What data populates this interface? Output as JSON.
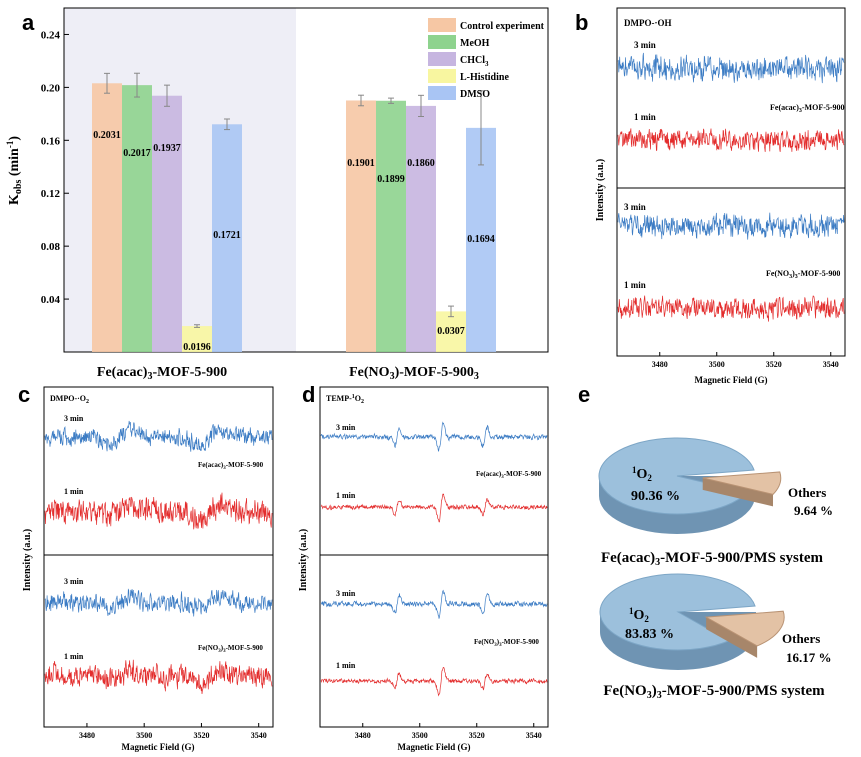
{
  "panels": {
    "a": "a",
    "b": "b",
    "c": "c",
    "d": "d",
    "e": "e"
  },
  "colors": {
    "control": "#f6c7a4",
    "meoh": "#8ed38e",
    "chcl3": "#c6b5e0",
    "histidine": "#f8f6a0",
    "dmso": "#a9c5f4",
    "blue_trace": "#3c7cc4",
    "red_trace": "#e32c2c",
    "pie_blue": "#9cc0dc",
    "pie_tan": "#e3c2a5"
  },
  "chart_data": [
    {
      "type": "bar",
      "panel": "a",
      "ylabel_main": "K",
      "ylabel_sub": "obs",
      "ylabel_unit": " (min",
      "ylabel_exp": "-1",
      "ylabel_close": ")",
      "ylim": [
        0,
        0.26
      ],
      "yticks": [
        "0.04",
        "0.08",
        "0.12",
        "0.16",
        "0.20",
        "0.24"
      ],
      "ytick_values": [
        0.04,
        0.08,
        0.12,
        0.16,
        0.2,
        0.24
      ],
      "categories": [
        "Fe(acac)3-MOF-5-900",
        "Fe(NO3)3-MOF-5-900"
      ],
      "category_main": [
        "Fe(acac)",
        "Fe(NO"
      ],
      "category_rest": [
        "-MOF-5-900",
        ")-MOF-5-900"
      ],
      "category_subs": [
        "3",
        "3"
      ],
      "category_subs2": [
        "",
        "3"
      ],
      "legend": [
        {
          "label": "Control experiment"
        },
        {
          "label": "MeOH"
        },
        {
          "label": "CHCl",
          "sub": "3"
        },
        {
          "label": "L-Histidine"
        },
        {
          "label": "DMSO"
        }
      ],
      "series": [
        {
          "name": "Control experiment",
          "values": [
            0.2031,
            0.1901
          ],
          "errors": [
            0.0075,
            0.004
          ]
        },
        {
          "name": "MeOH",
          "values": [
            0.2017,
            0.1899
          ],
          "errors": [
            0.009,
            0.002
          ]
        },
        {
          "name": "CHCl3",
          "values": [
            0.1937,
            0.186
          ],
          "errors": [
            0.008,
            0.008
          ]
        },
        {
          "name": "L-Histidine",
          "values": [
            0.0196,
            0.0307
          ],
          "errors": [
            0.001,
            0.004
          ]
        },
        {
          "name": "DMSO",
          "values": [
            0.1721,
            0.1694
          ],
          "errors": [
            0.004,
            0.028
          ]
        }
      ],
      "value_labels": [
        [
          "0.2031",
          "0.2017",
          "0.1937",
          "0.0196",
          "0.1721"
        ],
        [
          "0.1901",
          "0.1899",
          "0.1860",
          "0.0307",
          "0.1694"
        ]
      ]
    },
    {
      "type": "line",
      "panel": "b",
      "title": "DMPO-·OH",
      "ylabel": "Intensity (a.u.)",
      "xlabel": "Magnetic Field (G)",
      "xticks": [
        "3480",
        "3500",
        "3520",
        "3540"
      ],
      "xlim": [
        3465,
        3545
      ],
      "subplots": [
        {
          "sample_main": "Fe(acac)",
          "sample_sub": "3",
          "sample_rest": "-MOF-5-900",
          "traces": [
            "3 min",
            "1 min"
          ]
        },
        {
          "sample_main": "Fe(NO",
          "sample_sub": "3",
          "sample_sub_b": "3",
          "sample_rest": "-MOF-5-900",
          "traces": [
            "3 min",
            "1 min"
          ]
        }
      ]
    },
    {
      "type": "line",
      "panel": "c",
      "title": "DMPO-·O",
      "title_sub": "2",
      "ylabel": "Intensity (a.u.)",
      "xlabel": "Magnetic Field (G)",
      "xticks": [
        "3480",
        "3500",
        "3520",
        "3540"
      ],
      "traces": [
        "3 min",
        "1 min",
        "3 min",
        "1 min"
      ]
    },
    {
      "type": "line",
      "panel": "d",
      "title_pre": "TEMP-",
      "title_sup": "1",
      "title_post": "O",
      "title_sub": "2",
      "ylabel": "Intensity (a.u.)",
      "xlabel": "Magnetic Field (G)",
      "xticks": [
        "3480",
        "3500",
        "3520",
        "3540"
      ],
      "traces": [
        "3 min",
        "1 min",
        "3 min",
        "1 min"
      ]
    },
    {
      "type": "pie",
      "panel": "e",
      "pies": [
        {
          "system_main": "Fe(acac)",
          "system_sub": "3",
          "system_rest": "-MOF-5-900/PMS system",
          "slices": [
            {
              "label": "1O2",
              "value": 90.36,
              "text": "90.36 %"
            },
            {
              "label": "Others",
              "value": 9.64,
              "text": "9.64 %"
            }
          ]
        },
        {
          "system_main": "Fe(NO",
          "system_sub": "3",
          "system_mid": ")",
          "system_sub2": "3",
          "system_rest": "-MOF-5-900/PMS system",
          "slices": [
            {
              "label": "1O2",
              "value": 83.83,
              "text": "83.83 %"
            },
            {
              "label": "Others",
              "value": 16.17,
              "text": "16.17 %"
            }
          ]
        }
      ],
      "o2_main": "O",
      "o2_sup": "1",
      "o2_sub": "2",
      "others": "Others"
    }
  ]
}
